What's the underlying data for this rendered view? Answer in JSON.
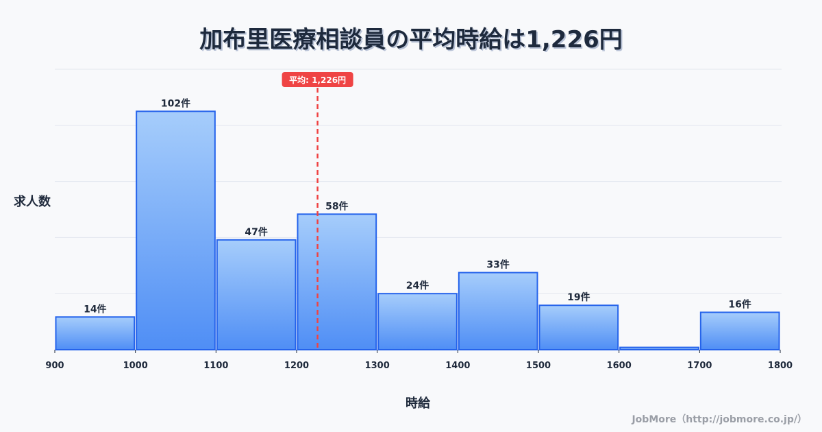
{
  "title": "加布里医療相談員の平均時給は1,226円",
  "y_axis_label": "求人数",
  "x_axis_label": "時給",
  "credit": "JobMore（http://jobmore.co.jp/）",
  "mean_label": "平均: 1,226円",
  "colors": {
    "bar_top": "#a6cdfb",
    "bar_bottom": "#4f8ef5",
    "bar_border": "#2563eb",
    "mean_line": "#ef4444",
    "grid": "#e2e6ee",
    "text": "#1e293b",
    "background": "#f8f9fb"
  },
  "chart_data": {
    "type": "bar",
    "subtype": "histogram",
    "title": "加布里医療相談員の平均時給は1,226円",
    "xlabel": "時給",
    "ylabel": "求人数",
    "bin_edges": [
      900,
      1000,
      1100,
      1200,
      1300,
      1400,
      1500,
      1600,
      1700,
      1800
    ],
    "categories": [
      "900-1000",
      "1000-1100",
      "1100-1200",
      "1200-1300",
      "1300-1400",
      "1400-1500",
      "1500-1600",
      "1600-1700",
      "1700-1800"
    ],
    "values": [
      14,
      102,
      47,
      58,
      24,
      33,
      19,
      1,
      16
    ],
    "value_labels": [
      "14件",
      "102件",
      "47件",
      "58件",
      "24件",
      "33件",
      "19件",
      "",
      "16件"
    ],
    "x_ticks": [
      "900",
      "1000",
      "1100",
      "1200",
      "1300",
      "1400",
      "1500",
      "1600",
      "1700",
      "1800"
    ],
    "xlim": [
      900,
      1800
    ],
    "ylim": [
      0,
      120
    ],
    "grid": true,
    "mean": 1226,
    "mean_annotation": "平均: 1,226円",
    "legend": null
  }
}
